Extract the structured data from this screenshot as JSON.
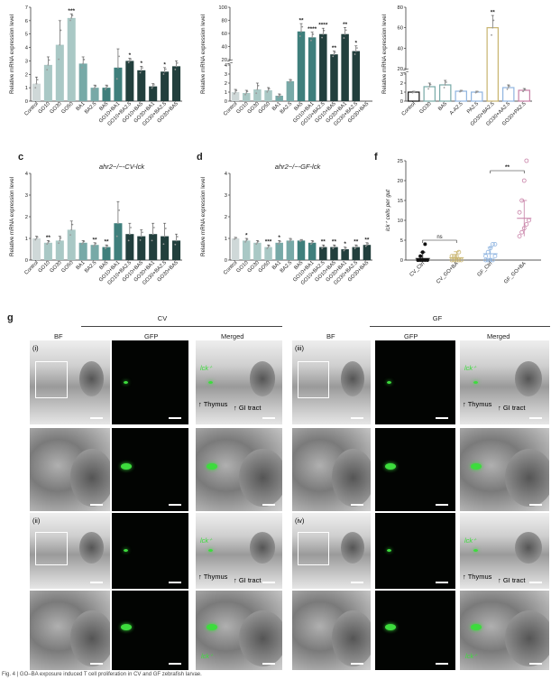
{
  "panel_letters": {
    "c": "c",
    "d": "d",
    "f": "f",
    "g": "g"
  },
  "panel_titles": {
    "c": "ahr2−/−-CV-lck",
    "d": "ahr2−/−-GF-lck"
  },
  "colors": {
    "c1": "#cfd8d8",
    "c2": "#a9c8c5",
    "c3": "#77a9a7",
    "c4": "#3f7f7c",
    "c5": "#223f3d",
    "gold": "#c8b46e",
    "blue": "#8fb4e0",
    "pink": "#c77fa6",
    "green": "#3ddc3d"
  },
  "chart_data": [
    {
      "id": "a",
      "type": "bar",
      "ylabel": "Relative mRNA expression level",
      "ylim": [
        0,
        7
      ],
      "yticks": [
        "0",
        "1",
        "2",
        "3",
        "4",
        "5",
        "6",
        "7"
      ],
      "categories": [
        "Control",
        "GO10",
        "GO30",
        "GO50",
        "BA1",
        "BA2.5",
        "BA5",
        "GO10+BA1",
        "GO10+BA2.5",
        "GO10+BA5",
        "GO30+BA1",
        "GO30+BA2.5",
        "GO30+BA5"
      ],
      "values": [
        1.3,
        2.7,
        4.2,
        6.2,
        2.8,
        1.0,
        1.0,
        2.5,
        3.0,
        2.3,
        1.1,
        2.2,
        2.6
      ],
      "errors": [
        0.5,
        0.6,
        1.8,
        0.3,
        0.5,
        0.2,
        0.2,
        1.4,
        0.2,
        0.3,
        0.2,
        0.3,
        0.4
      ],
      "sig": [
        "",
        "",
        "",
        "***",
        "",
        "",
        "",
        "",
        "*",
        "*",
        "",
        "*",
        ""
      ]
    },
    {
      "id": "b",
      "type": "bar",
      "ylabel": "Relative mRNA expression level",
      "ybreak": true,
      "yticks": [
        "0",
        "1",
        "2",
        "3",
        "4",
        "20",
        "40",
        "60",
        "80",
        "100"
      ],
      "categories": [
        "Control",
        "GO10",
        "GO30",
        "GO50",
        "BA1",
        "BA2.5",
        "BA5",
        "GO10+BA1",
        "GO10+BA2.5",
        "GO10+BA5",
        "GO30+BA1",
        "GO30+BA2.5",
        "GO30+BA5"
      ],
      "values": [
        1.0,
        0.9,
        1.3,
        1.2,
        0.6,
        2.2,
        63,
        54,
        59,
        28,
        59,
        33,
        null
      ],
      "errors": [
        0.3,
        0.3,
        0.7,
        0.3,
        0.2,
        0.2,
        12,
        8,
        9,
        5,
        10,
        8,
        null
      ],
      "sig": [
        "",
        "",
        "",
        "",
        "",
        "",
        "**",
        "****",
        "****",
        "**",
        "**",
        "*",
        ""
      ]
    },
    {
      "id": "e",
      "type": "bar",
      "ylabel": "Relative mRNA expression level",
      "ybreak": true,
      "yticks": [
        "0",
        "1",
        "2",
        "3",
        "20",
        "40",
        "60",
        "80"
      ],
      "categories": [
        "Control",
        "GO30",
        "BA5",
        "A-A2.5",
        "PA2.5",
        "GO30+BA2.5",
        "GO30+AA2.5",
        "GO30+PA2.5"
      ],
      "values": [
        1.0,
        1.6,
        1.8,
        1.1,
        1.0,
        60,
        1.5,
        1.2
      ],
      "errors": [
        0.1,
        0.4,
        0.5,
        0.1,
        0.1,
        12,
        0.3,
        0.2
      ],
      "sig": [
        "",
        "",
        "",
        "",
        "",
        "**",
        "",
        ""
      ]
    },
    {
      "id": "c",
      "type": "bar",
      "ylabel": "Relative mRNA expression level",
      "ylim": [
        0,
        4
      ],
      "yticks": [
        "0",
        "1",
        "2",
        "3",
        "4"
      ],
      "categories": [
        "Control",
        "GO10",
        "GO30",
        "GO50",
        "BA1",
        "BA2.5",
        "BA5",
        "GO10+BA1",
        "GO10+BA2.5",
        "GO10+BA5",
        "GO30+BA1",
        "GO30+BA2.5",
        "GO30+BA5"
      ],
      "values": [
        1.0,
        0.8,
        0.9,
        1.4,
        0.8,
        0.7,
        0.6,
        1.7,
        1.2,
        1.1,
        1.2,
        1.1,
        0.9
      ],
      "errors": [
        0.1,
        0.1,
        0.2,
        0.4,
        0.1,
        0.1,
        0.1,
        1.0,
        0.5,
        0.3,
        0.5,
        0.6,
        0.3
      ],
      "sig": [
        "",
        "**",
        "",
        "",
        "",
        "**",
        "**",
        "",
        "",
        "",
        "",
        "",
        ""
      ]
    },
    {
      "id": "d",
      "type": "bar",
      "ylabel": "Relative mRNA expression level",
      "ylim": [
        0,
        4
      ],
      "yticks": [
        "0",
        "1",
        "2",
        "3",
        "4"
      ],
      "categories": [
        "Control",
        "GO10",
        "GO30",
        "GO50",
        "BA1",
        "BA2.5",
        "BA5",
        "GO10+BA1",
        "GO10+BA2.5",
        "GO10+BA5",
        "GO30+BA1",
        "GO30+BA2.5",
        "GO30+BA5"
      ],
      "values": [
        1.0,
        0.9,
        0.8,
        0.6,
        0.8,
        0.9,
        0.9,
        0.8,
        0.6,
        0.6,
        0.5,
        0.6,
        0.7
      ],
      "errors": [
        0.05,
        0.1,
        0.1,
        0.1,
        0.1,
        0.1,
        0.05,
        0.1,
        0.1,
        0.1,
        0.1,
        0.1,
        0.1
      ],
      "sig": [
        "",
        "*",
        "",
        "***",
        "*",
        "",
        "",
        "",
        "**",
        "**",
        "*",
        "**",
        "**"
      ]
    },
    {
      "id": "f",
      "type": "scatter",
      "ylabel": "lck⁺ cells per gut",
      "ylim": [
        0,
        25
      ],
      "yticks": [
        "0",
        "5",
        "10",
        "15",
        "20",
        "25"
      ],
      "categories": [
        "CV_Ctrl",
        "CV_GO+BA",
        "GF_Ctrl",
        "GF_GO+BA"
      ],
      "means": [
        0.4,
        0.6,
        1.6,
        10.5
      ],
      "errors": [
        1.6,
        1.5,
        1.6,
        4.5
      ],
      "points": [
        [
          0,
          0,
          0,
          0,
          0,
          0,
          1,
          2,
          4
        ],
        [
          0,
          0,
          0,
          0,
          0,
          1,
          1,
          1,
          2
        ],
        [
          0,
          0,
          0,
          0,
          1,
          1,
          2,
          3,
          4,
          4
        ],
        [
          6,
          7,
          8,
          9,
          10,
          12,
          15,
          20,
          25
        ]
      ],
      "ns_label": "ns",
      "sig_label": "**"
    }
  ],
  "panel_g": {
    "headers": {
      "cv": "CV",
      "gf": "GF"
    },
    "col_labels": [
      "BF",
      "GFP",
      "Merged",
      "BF",
      "GFP",
      "Merged"
    ],
    "roman": [
      "(i)",
      "(ii)",
      "(iii)",
      "(iv)"
    ],
    "lck": "lck⁺",
    "thymus": "Thymus",
    "gi": "GI tract"
  },
  "caption": "Fig. 4 | GO–BA exposure induced T cell proliferation in CV and GF zebrafish larvae."
}
